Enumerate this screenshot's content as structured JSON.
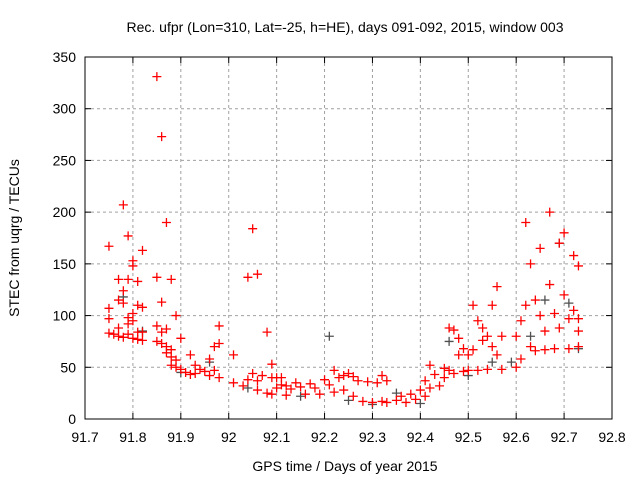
{
  "chart_data": {
    "type": "scatter",
    "title": "Rec. ufpr (Lon=310, Lat=-25, h=HE), days 091-092, 2015, window 003",
    "xlabel": "GPS time / Days of year 2015",
    "ylabel": "STEC from uqrg / TECUs",
    "xlim": [
      91.7,
      92.8
    ],
    "ylim": [
      0,
      350
    ],
    "xticks": [
      "91.7",
      "91.8",
      "91.9",
      "92",
      "92.1",
      "92.2",
      "92.3",
      "92.4",
      "92.5",
      "92.6",
      "92.7",
      "92.8"
    ],
    "xtick_values": [
      91.7,
      91.8,
      91.9,
      92.0,
      92.1,
      92.2,
      92.3,
      92.4,
      92.5,
      92.6,
      92.7,
      92.8
    ],
    "yticks": [
      "0",
      "50",
      "100",
      "150",
      "200",
      "250",
      "300",
      "350"
    ],
    "ytick_values": [
      0,
      50,
      100,
      150,
      200,
      250,
      300,
      350
    ],
    "grid": true,
    "marker": "plus",
    "series": [
      {
        "name": "gray",
        "color": "#505050",
        "points": [
          [
            92.21,
            80
          ],
          [
            92.04,
            30
          ],
          [
            92.15,
            22
          ],
          [
            92.3,
            14
          ],
          [
            92.35,
            25
          ],
          [
            91.82,
            85
          ],
          [
            91.78,
            118
          ],
          [
            91.9,
            45
          ],
          [
            92.59,
            55
          ],
          [
            92.66,
            115
          ],
          [
            92.69,
            170
          ],
          [
            92.73,
            68
          ],
          [
            92.46,
            75
          ],
          [
            92.63,
            80
          ],
          [
            92.71,
            112
          ],
          [
            92.55,
            55
          ],
          [
            91.96,
            55
          ],
          [
            92.25,
            18
          ],
          [
            92.4,
            15
          ],
          [
            92.5,
            42
          ]
        ]
      },
      {
        "name": "red",
        "color": "#ff0000",
        "points": [
          [
            91.75,
            167
          ],
          [
            91.75,
            107
          ],
          [
            91.75,
            97
          ],
          [
            91.75,
            83
          ],
          [
            91.76,
            82
          ],
          [
            91.77,
            135
          ],
          [
            91.77,
            115
          ],
          [
            91.77,
            88
          ],
          [
            91.77,
            80
          ],
          [
            91.78,
            207
          ],
          [
            91.78,
            124
          ],
          [
            91.78,
            112
          ],
          [
            91.78,
            79
          ],
          [
            91.79,
            177
          ],
          [
            91.79,
            135
          ],
          [
            91.79,
            98
          ],
          [
            91.79,
            92
          ],
          [
            91.79,
            82
          ],
          [
            91.8,
            153
          ],
          [
            91.8,
            148
          ],
          [
            91.8,
            102
          ],
          [
            91.8,
            95
          ],
          [
            91.8,
            78
          ],
          [
            91.81,
            133
          ],
          [
            91.81,
            110
          ],
          [
            91.81,
            84
          ],
          [
            91.81,
            77
          ],
          [
            91.82,
            163
          ],
          [
            91.82,
            108
          ],
          [
            91.82,
            84
          ],
          [
            91.82,
            76
          ],
          [
            91.85,
            331
          ],
          [
            91.85,
            137
          ],
          [
            91.85,
            90
          ],
          [
            91.85,
            75
          ],
          [
            91.86,
            273
          ],
          [
            91.86,
            113
          ],
          [
            91.86,
            84
          ],
          [
            91.86,
            73
          ],
          [
            91.87,
            190
          ],
          [
            91.87,
            87
          ],
          [
            91.87,
            70
          ],
          [
            91.87,
            64
          ],
          [
            91.88,
            135
          ],
          [
            91.88,
            67
          ],
          [
            91.88,
            60
          ],
          [
            91.88,
            52
          ],
          [
            91.89,
            100
          ],
          [
            91.89,
            57
          ],
          [
            91.89,
            50
          ],
          [
            91.9,
            78
          ],
          [
            91.9,
            48
          ],
          [
            91.91,
            45
          ],
          [
            91.92,
            62
          ],
          [
            91.92,
            43
          ],
          [
            91.93,
            52
          ],
          [
            91.93,
            44
          ],
          [
            91.94,
            48
          ],
          [
            91.95,
            46
          ],
          [
            91.96,
            58
          ],
          [
            91.96,
            42
          ],
          [
            91.97,
            70
          ],
          [
            91.97,
            47
          ],
          [
            91.98,
            90
          ],
          [
            91.98,
            73
          ],
          [
            91.98,
            40
          ],
          [
            92.01,
            62
          ],
          [
            92.01,
            35
          ],
          [
            92.03,
            32
          ],
          [
            92.04,
            137
          ],
          [
            92.04,
            38
          ],
          [
            92.05,
            184
          ],
          [
            92.05,
            44
          ],
          [
            92.06,
            140
          ],
          [
            92.06,
            37
          ],
          [
            92.06,
            28
          ],
          [
            92.07,
            42
          ],
          [
            92.08,
            84
          ],
          [
            92.08,
            25
          ],
          [
            92.09,
            53
          ],
          [
            92.09,
            40
          ],
          [
            92.09,
            24
          ],
          [
            92.1,
            40
          ],
          [
            92.1,
            30
          ],
          [
            92.11,
            40
          ],
          [
            92.11,
            33
          ],
          [
            92.12,
            32
          ],
          [
            92.12,
            23
          ],
          [
            92.13,
            29
          ],
          [
            92.14,
            35
          ],
          [
            92.15,
            31
          ],
          [
            92.16,
            24
          ],
          [
            92.17,
            34
          ],
          [
            92.18,
            30
          ],
          [
            92.19,
            24
          ],
          [
            92.2,
            38
          ],
          [
            92.21,
            33
          ],
          [
            92.22,
            47
          ],
          [
            92.22,
            26
          ],
          [
            92.23,
            40
          ],
          [
            92.24,
            42
          ],
          [
            92.24,
            28
          ],
          [
            92.25,
            44
          ],
          [
            92.26,
            41
          ],
          [
            92.26,
            22
          ],
          [
            92.27,
            37
          ],
          [
            92.28,
            17
          ],
          [
            92.29,
            36
          ],
          [
            92.3,
            16
          ],
          [
            92.31,
            35
          ],
          [
            92.32,
            42
          ],
          [
            92.32,
            17
          ],
          [
            92.33,
            37
          ],
          [
            92.33,
            16
          ],
          [
            92.35,
            18
          ],
          [
            92.36,
            22
          ],
          [
            92.37,
            16
          ],
          [
            92.38,
            24
          ],
          [
            92.39,
            19
          ],
          [
            92.4,
            28
          ],
          [
            92.41,
            37
          ],
          [
            92.41,
            22
          ],
          [
            92.42,
            52
          ],
          [
            92.42,
            30
          ],
          [
            92.43,
            43
          ],
          [
            92.44,
            32
          ],
          [
            92.45,
            49
          ],
          [
            92.45,
            40
          ],
          [
            92.46,
            88
          ],
          [
            92.46,
            47
          ],
          [
            92.47,
            86
          ],
          [
            92.47,
            44
          ],
          [
            92.48,
            78
          ],
          [
            92.48,
            62
          ],
          [
            92.49,
            68
          ],
          [
            92.49,
            46
          ],
          [
            92.5,
            62
          ],
          [
            92.5,
            47
          ],
          [
            92.51,
            110
          ],
          [
            92.51,
            67
          ],
          [
            92.52,
            95
          ],
          [
            92.52,
            47
          ],
          [
            92.53,
            88
          ],
          [
            92.53,
            76
          ],
          [
            92.54,
            80
          ],
          [
            92.54,
            48
          ],
          [
            92.55,
            110
          ],
          [
            92.55,
            70
          ],
          [
            92.56,
            128
          ],
          [
            92.56,
            62
          ],
          [
            92.57,
            80
          ],
          [
            92.57,
            48
          ],
          [
            92.6,
            80
          ],
          [
            92.6,
            50
          ],
          [
            92.61,
            95
          ],
          [
            92.61,
            58
          ],
          [
            92.62,
            190
          ],
          [
            92.62,
            110
          ],
          [
            92.63,
            150
          ],
          [
            92.63,
            70
          ],
          [
            92.64,
            115
          ],
          [
            92.64,
            66
          ],
          [
            92.65,
            165
          ],
          [
            92.65,
            100
          ],
          [
            92.66,
            85
          ],
          [
            92.66,
            67
          ],
          [
            92.67,
            200
          ],
          [
            92.67,
            130
          ],
          [
            92.68,
            102
          ],
          [
            92.68,
            68
          ],
          [
            92.69,
            170
          ],
          [
            92.69,
            88
          ],
          [
            92.7,
            180
          ],
          [
            92.7,
            120
          ],
          [
            92.71,
            97
          ],
          [
            92.71,
            68
          ],
          [
            92.72,
            158
          ],
          [
            92.72,
            105
          ],
          [
            92.73,
            148
          ],
          [
            92.73,
            97
          ],
          [
            92.73,
            85
          ],
          [
            92.73,
            70
          ]
        ]
      }
    ]
  }
}
